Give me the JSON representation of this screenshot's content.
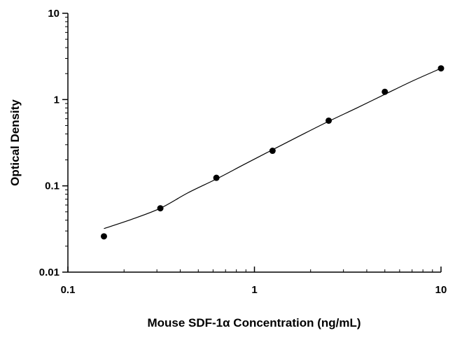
{
  "chart_data": {
    "type": "scatter",
    "title": "",
    "xlabel": "Mouse SDF-1α Concentration (ng/mL)",
    "ylabel": "Optical Density",
    "x_scale": "log",
    "y_scale": "log",
    "xlim": [
      0.1,
      10
    ],
    "ylim": [
      0.01,
      10
    ],
    "x_ticks": [
      {
        "value": 0.1,
        "label": "0.1"
      },
      {
        "value": 1,
        "label": "1"
      },
      {
        "value": 10,
        "label": "10"
      }
    ],
    "y_ticks": [
      {
        "value": 0.01,
        "label": "0.01"
      },
      {
        "value": 0.1,
        "label": "0.1"
      },
      {
        "value": 1,
        "label": "1"
      },
      {
        "value": 10,
        "label": "10"
      }
    ],
    "grid": false,
    "legend": "none",
    "series": [
      {
        "kind": "points",
        "x": [
          0.156,
          0.313,
          0.625,
          1.25,
          2.5,
          5,
          10
        ],
        "y": [
          0.026,
          0.055,
          0.124,
          0.255,
          0.57,
          1.23,
          2.3
        ]
      },
      {
        "kind": "fit-curve",
        "x": [
          0.156,
          0.22,
          0.313,
          0.44,
          0.625,
          0.88,
          1.25,
          1.77,
          2.5,
          3.54,
          5,
          7.07,
          10
        ],
        "y": [
          0.032,
          0.041,
          0.055,
          0.083,
          0.12,
          0.177,
          0.262,
          0.385,
          0.56,
          0.8,
          1.15,
          1.65,
          2.3
        ]
      }
    ],
    "colors": {
      "axis": "#000000",
      "points": "#000000",
      "curve": "#000000",
      "background": "#ffffff"
    }
  }
}
